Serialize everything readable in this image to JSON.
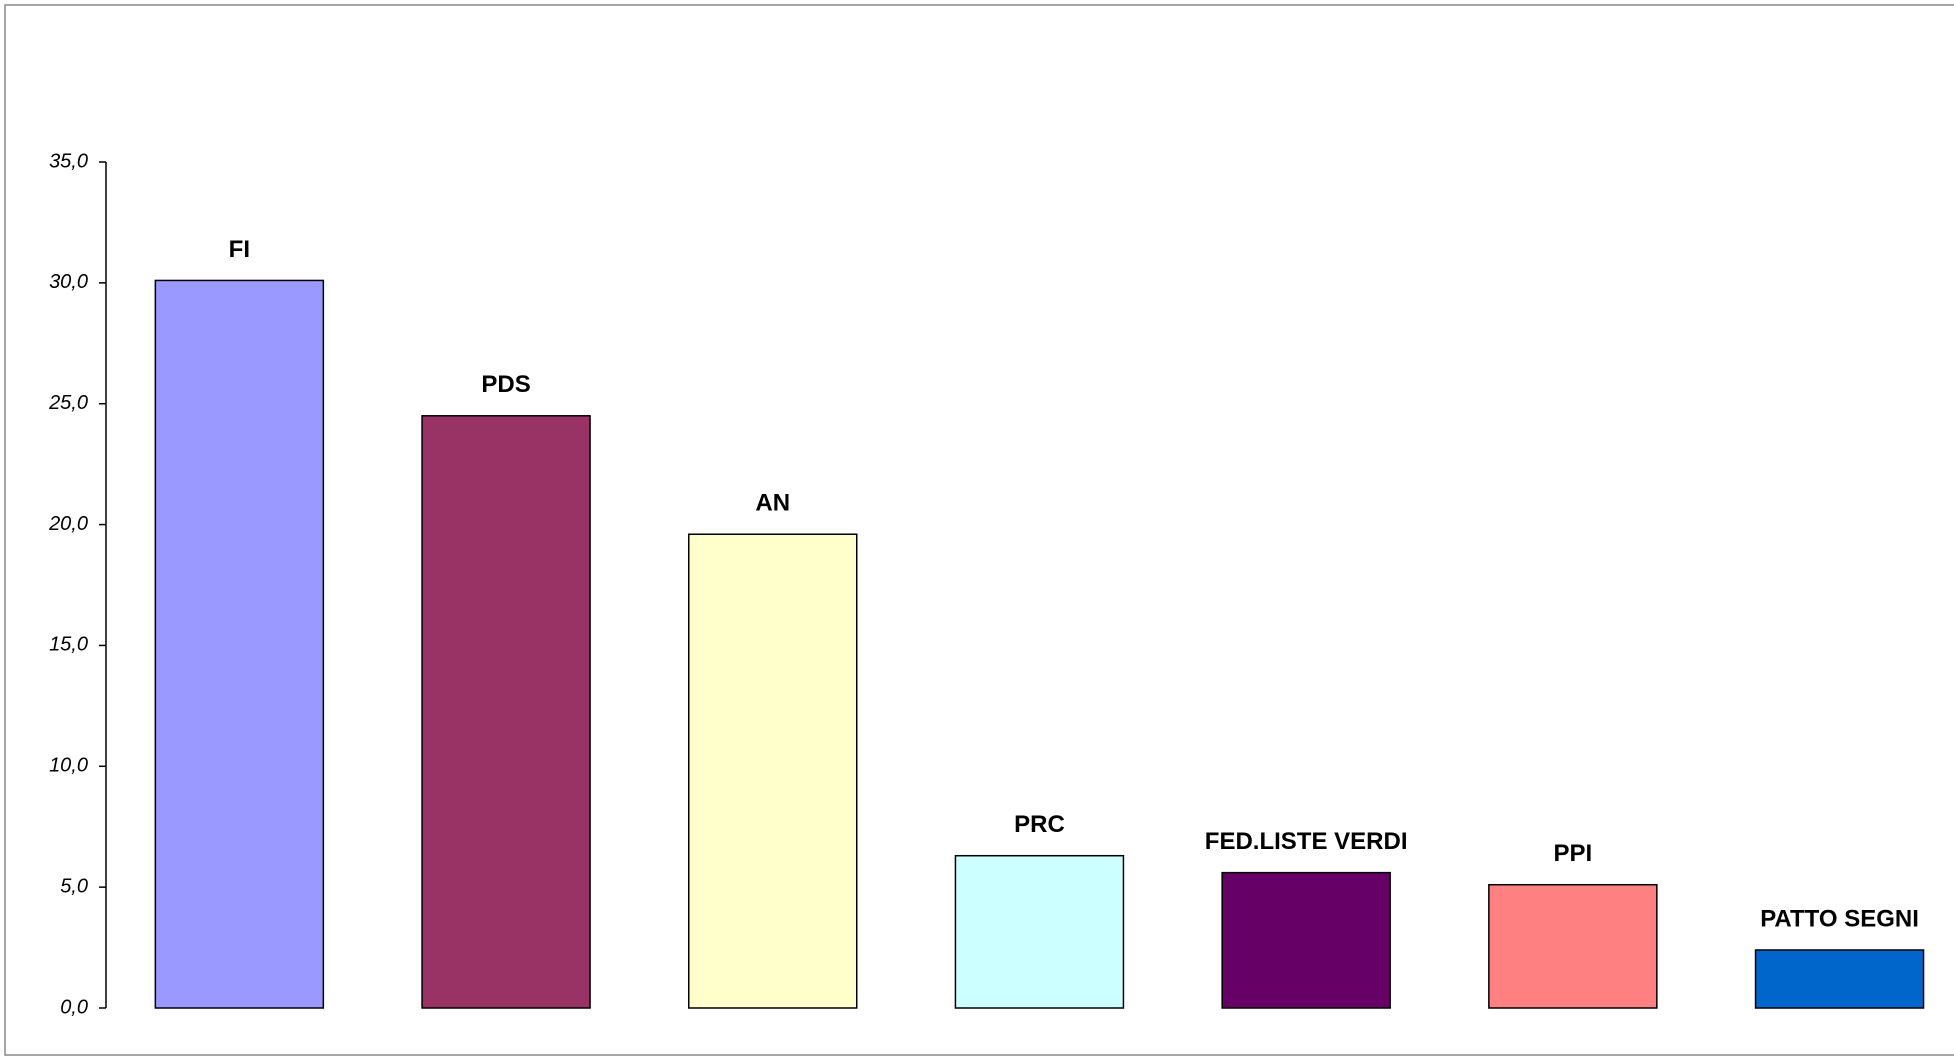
{
  "chart_data": {
    "type": "bar",
    "categories": [
      "FI",
      "PDS",
      "AN",
      "PRC",
      "FED.LISTE VERDI",
      "PPI",
      "PATTO SEGNI"
    ],
    "values": [
      30.1,
      24.5,
      19.6,
      6.3,
      5.6,
      5.1,
      2.4
    ],
    "colors": [
      "#9999ff",
      "#993366",
      "#ffffcc",
      "#ccffff",
      "#660066",
      "#ff8080",
      "#0066cc"
    ],
    "ylim": [
      0,
      35
    ],
    "yticks": [
      {
        "value": 0,
        "label": "0,0"
      },
      {
        "value": 5,
        "label": "5,0"
      },
      {
        "value": 10,
        "label": "10,0"
      },
      {
        "value": 15,
        "label": "15,0"
      },
      {
        "value": 20,
        "label": "20,0"
      },
      {
        "value": 25,
        "label": "25,0"
      },
      {
        "value": 30,
        "label": "30,0"
      },
      {
        "value": 35,
        "label": "35,0"
      }
    ],
    "grid": false
  }
}
